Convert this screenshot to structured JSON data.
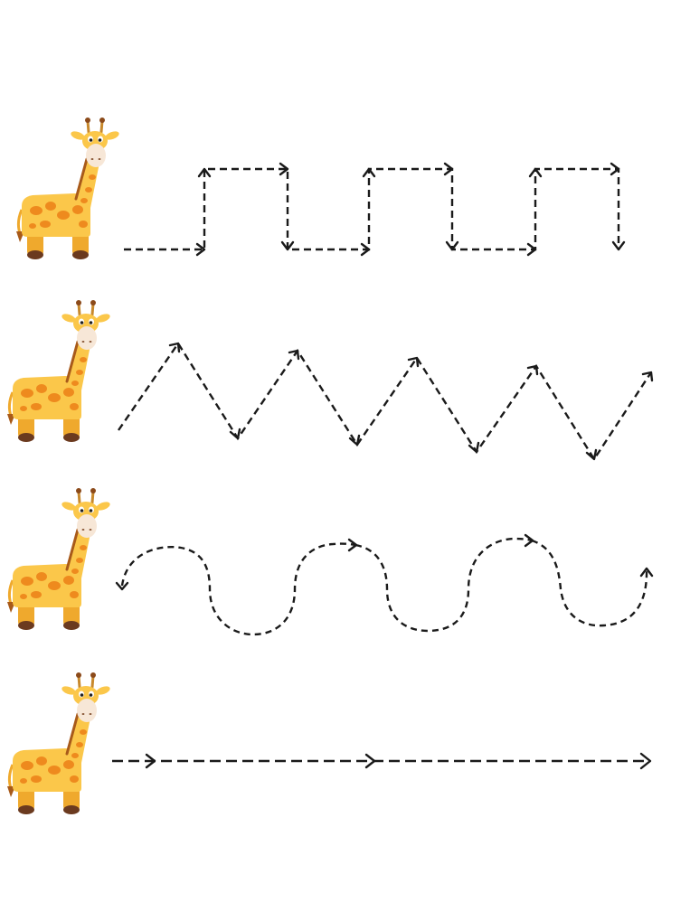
{
  "worksheet": {
    "background_color": "#ffffff",
    "colors": {
      "giraffe_body": "#fbc74a",
      "giraffe_body_shade": "#efa92d",
      "giraffe_spots": "#ee8a1e",
      "giraffe_muzzle": "#f7e7d7",
      "giraffe_hooves": "#6b3a1f",
      "giraffe_mane": "#a85a1a",
      "trace_line": "#1a1a1a"
    },
    "rows": [
      {
        "id": "row-1",
        "giraffe_icon": "giraffe-icon",
        "pattern": "square-wave"
      },
      {
        "id": "row-2",
        "giraffe_icon": "giraffe-icon",
        "pattern": "zigzag"
      },
      {
        "id": "row-3",
        "giraffe_icon": "giraffe-icon",
        "pattern": "curvy-wave"
      },
      {
        "id": "row-4",
        "giraffe_icon": "giraffe-icon",
        "pattern": "straight-line"
      }
    ]
  }
}
